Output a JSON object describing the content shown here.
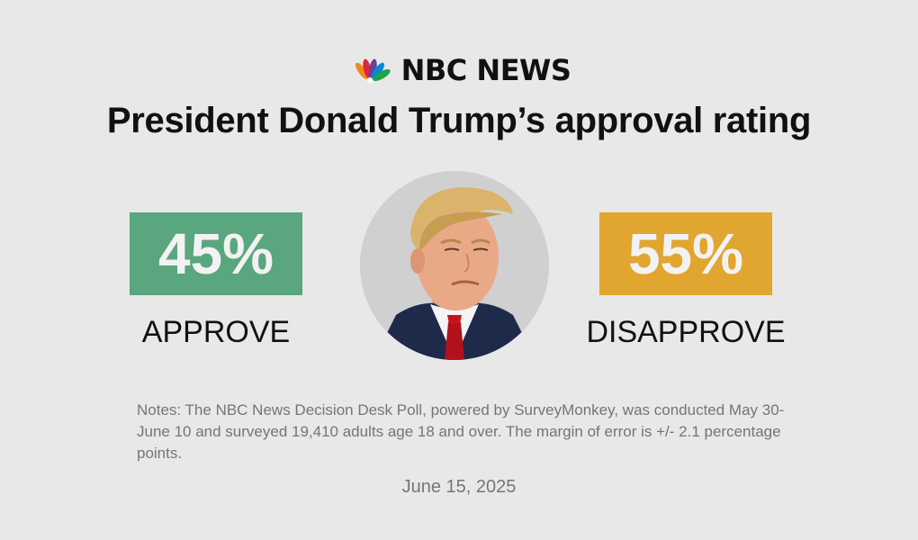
{
  "brand": {
    "name": "NBC NEWS",
    "logo_icon": "nbc-peacock-icon"
  },
  "headline": "President Donald Trump’s approval rating",
  "approve": {
    "value": "45%",
    "label": "APPROVE",
    "color": "#5aa67e"
  },
  "disapprove": {
    "value": "55%",
    "label": "DISAPPROVE",
    "color": "#e0a630"
  },
  "portrait": {
    "icon": "portrait-photo"
  },
  "notes": "Notes: The NBC News Decision Desk Poll, powered by SurveyMonkey, was conducted May 30-June 10 and surveyed 19,410 adults age 18 and over. The margin of error is +/- 2.1 percentage points.",
  "date": "June 15, 2025"
}
